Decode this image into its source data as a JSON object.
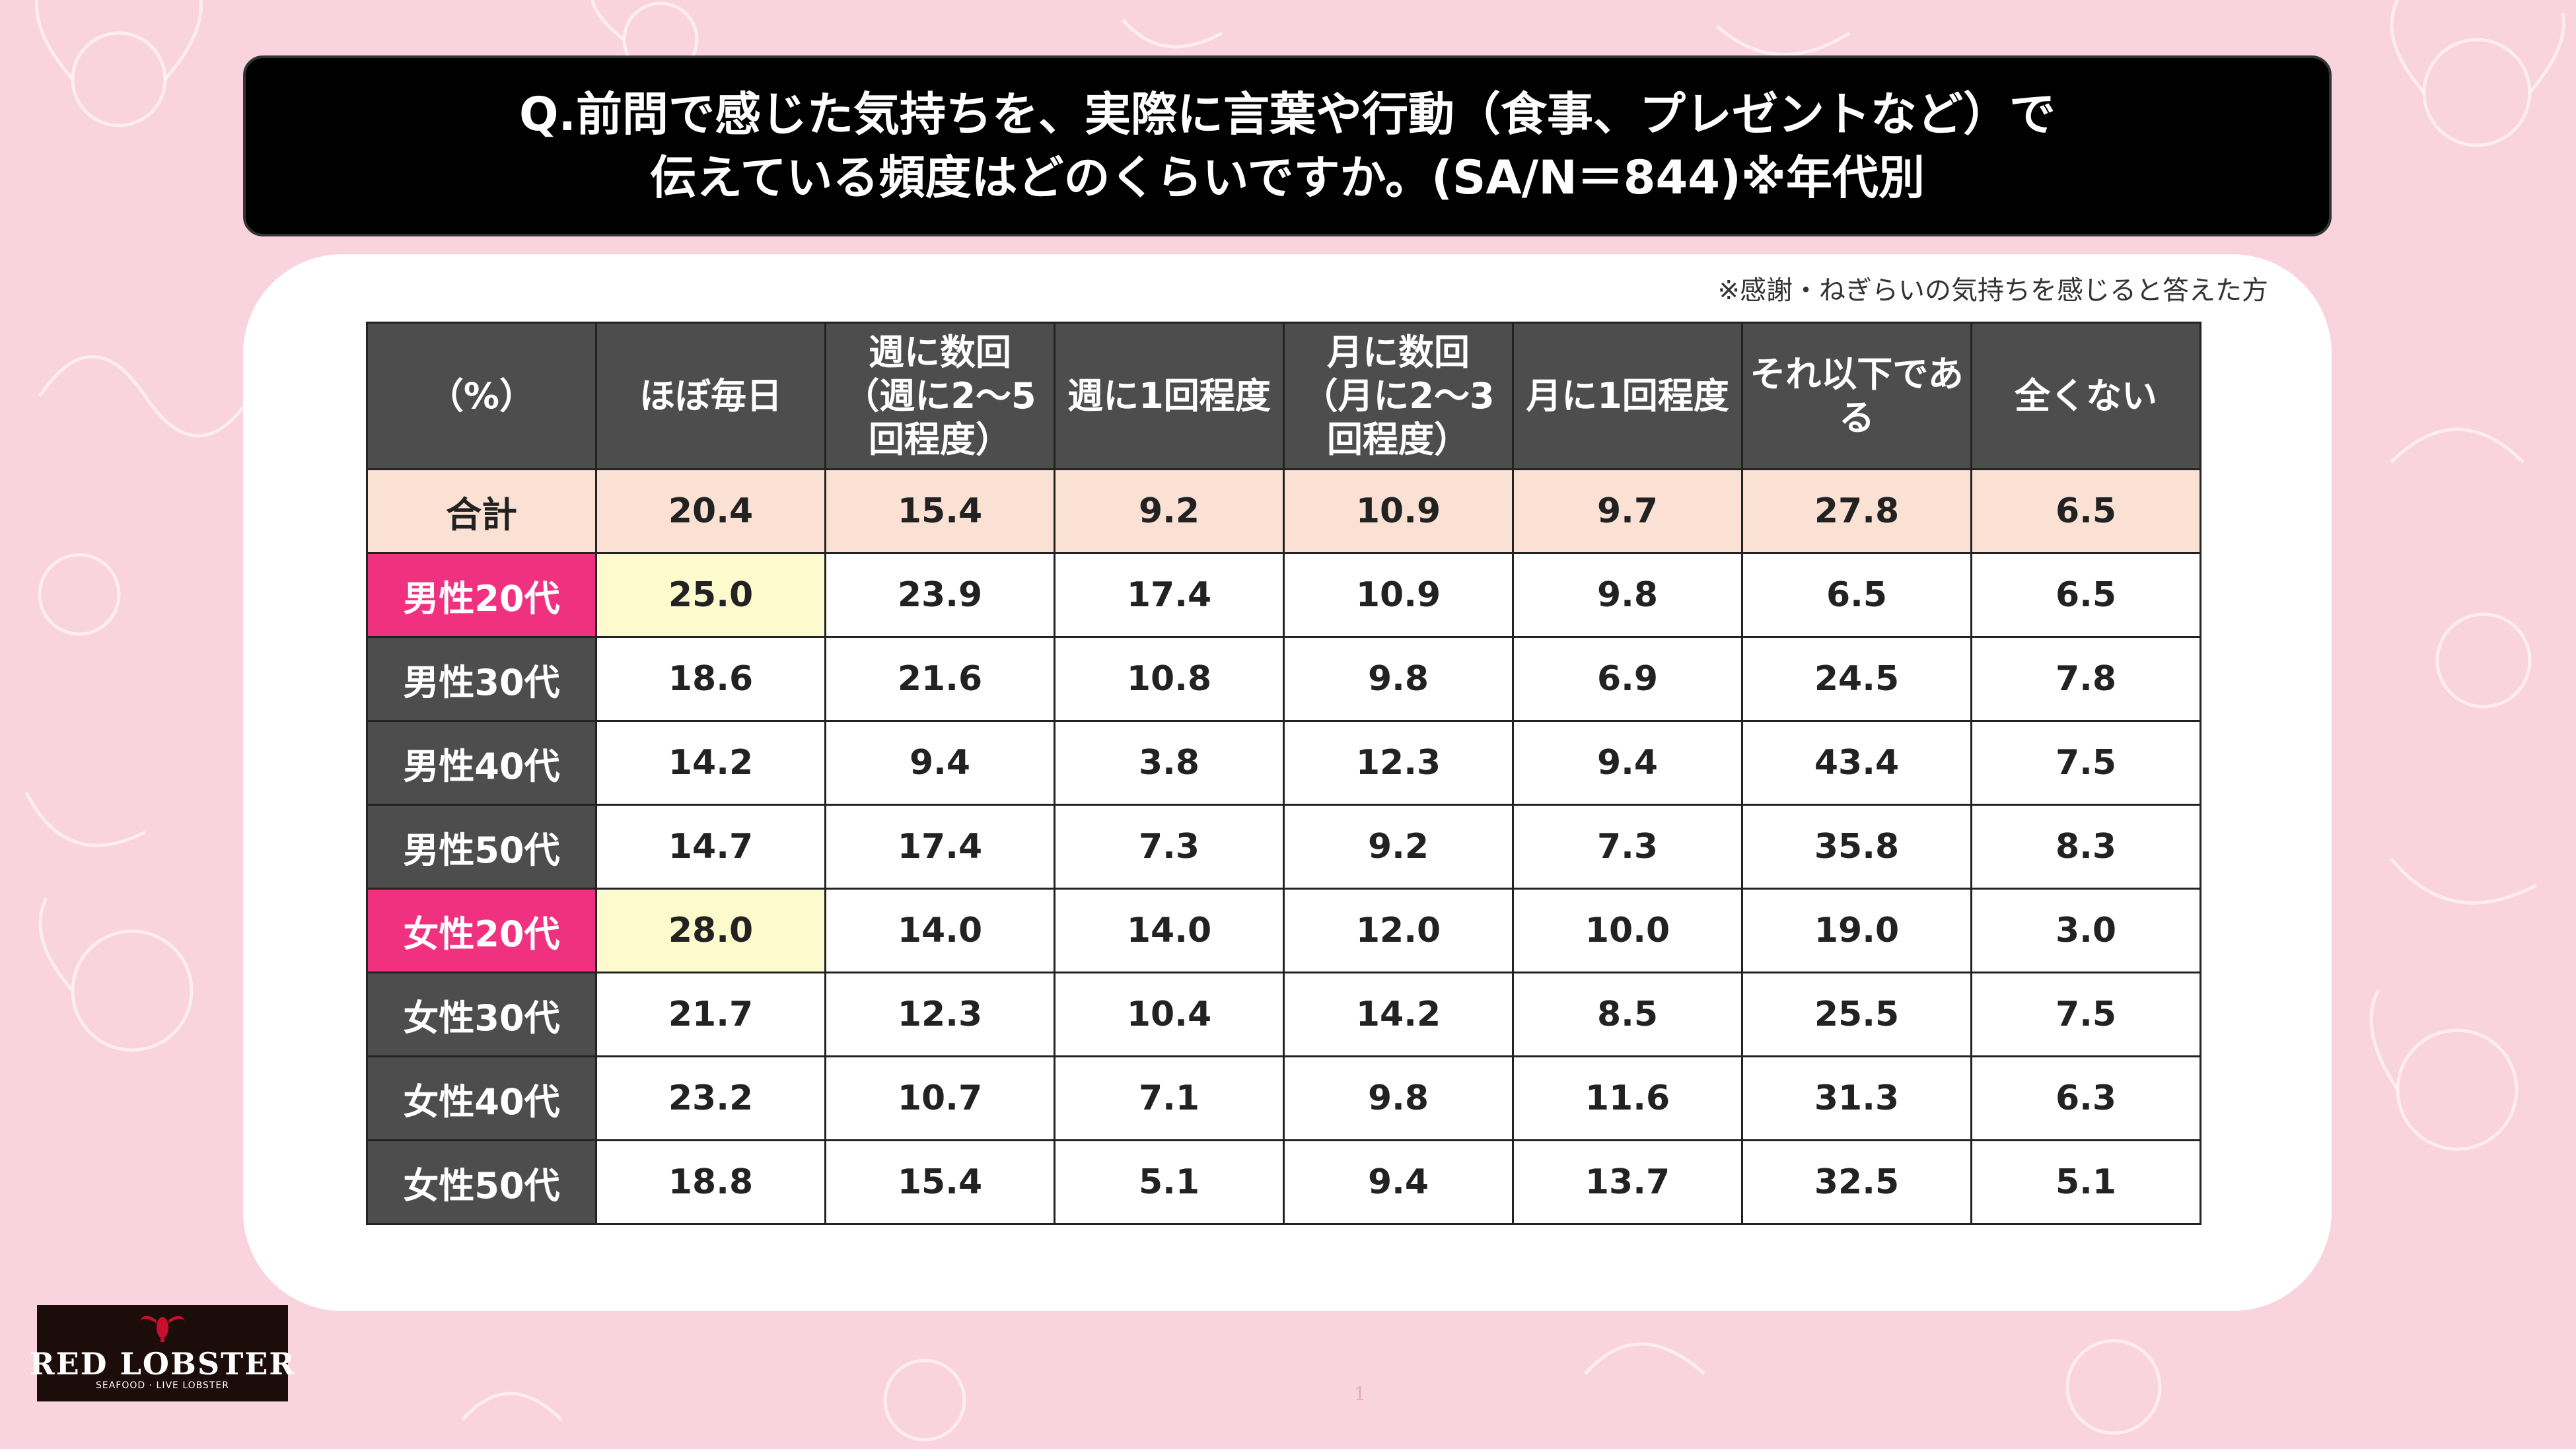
{
  "title": {
    "line1": "Q.前問で感じた気持ちを、実際に言葉や行動（食事、プレゼントなど）で",
    "line2": "伝えている頻度はどのくらいですか。(SA/N＝844)※年代別"
  },
  "note": "※感謝・ねぎらいの気持ちを感じると答えた方",
  "chart_data": {
    "type": "table",
    "corner_label": "（%）",
    "columns": [
      [
        "ほぼ毎日"
      ],
      [
        "週に数回",
        "（週に2～5",
        "回程度）"
      ],
      [
        "週に1回程度"
      ],
      [
        "月に数回",
        "（月に2～3",
        "回程度）"
      ],
      [
        "月に1回程度"
      ],
      [
        "それ以下であ",
        "る"
      ],
      [
        "全くない"
      ]
    ],
    "rows": [
      {
        "label": "合計",
        "values": [
          "20.4",
          "15.4",
          "9.2",
          "10.9",
          "9.7",
          "27.8",
          "6.5"
        ]
      },
      {
        "label": "男性20代",
        "values": [
          "25.0",
          "23.9",
          "17.4",
          "10.9",
          "9.8",
          "6.5",
          "6.5"
        ]
      },
      {
        "label": "男性30代",
        "values": [
          "18.6",
          "21.6",
          "10.8",
          "9.8",
          "6.9",
          "24.5",
          "7.8"
        ]
      },
      {
        "label": "男性40代",
        "values": [
          "14.2",
          "9.4",
          "3.8",
          "12.3",
          "9.4",
          "43.4",
          "7.5"
        ]
      },
      {
        "label": "男性50代",
        "values": [
          "14.7",
          "17.4",
          "7.3",
          "9.2",
          "7.3",
          "35.8",
          "8.3"
        ]
      },
      {
        "label": "女性20代",
        "values": [
          "28.0",
          "14.0",
          "14.0",
          "12.0",
          "10.0",
          "19.0",
          "3.0"
        ]
      },
      {
        "label": "女性30代",
        "values": [
          "21.7",
          "12.3",
          "10.4",
          "14.2",
          "8.5",
          "25.5",
          "7.5"
        ]
      },
      {
        "label": "女性40代",
        "values": [
          "23.2",
          "10.7",
          "7.1",
          "9.8",
          "11.6",
          "31.3",
          "6.3"
        ]
      },
      {
        "label": "女性50代",
        "values": [
          "18.8",
          "15.4",
          "5.1",
          "9.4",
          "13.7",
          "32.5",
          "5.1"
        ]
      }
    ],
    "highlighted_rows": [
      "男性20代",
      "女性20代"
    ],
    "highlighted_cells": [
      {
        "row": "男性20代",
        "column": 0
      },
      {
        "row": "女性20代",
        "column": 0
      }
    ]
  },
  "colors": {
    "background": "#f9d3dd",
    "header": "#4d4d4d",
    "highlight_row_label": "#f0317f",
    "total_row": "#fae1d4",
    "highlight_cell": "#fdfbcd"
  },
  "logo": {
    "name": "RED LOBSTER",
    "tagline": "SEAFOOD · LIVE LOBSTER"
  },
  "page_number": "1"
}
